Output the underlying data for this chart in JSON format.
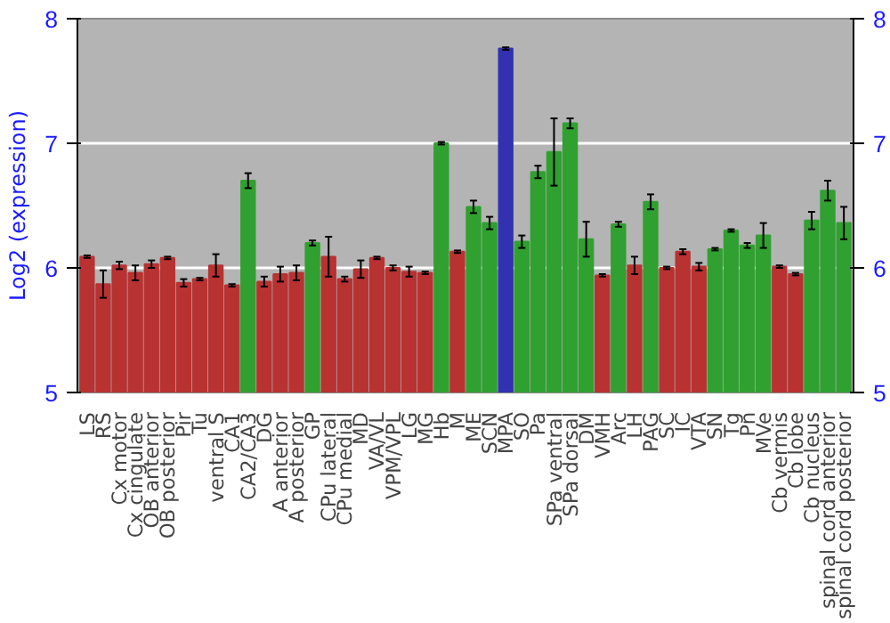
{
  "chart_data": {
    "type": "bar",
    "ylabel": "Log2 (expression)",
    "categories": [
      "LS",
      "RS",
      "Cx motor",
      "Cx cingulate",
      "OB anterior",
      "OB posterior",
      "Pir",
      "Tu",
      "ventral S",
      "CA1",
      "CA2/CA3",
      "DG",
      "A anterior",
      "A posterior",
      "GP",
      "CPu lateral",
      "CPu medial",
      "MD",
      "VA/VL",
      "VPM/VPL",
      "LG",
      "MG",
      "Hb",
      "M",
      "ME",
      "SCN",
      "MPA",
      "SO",
      "Pa",
      "SPa ventral",
      "SPa dorsal",
      "DM",
      "VMH",
      "Arc",
      "LH",
      "PAG",
      "SC",
      "IC",
      "VTA",
      "SN",
      "Tg",
      "Pn",
      "MVe",
      "Cb vermis",
      "Cb lobe",
      "Cb nucleus",
      "spinal cord anterior",
      "spinal cord posterior"
    ],
    "values": [
      6.09,
      5.87,
      6.02,
      5.96,
      6.03,
      6.08,
      5.88,
      5.91,
      6.02,
      5.86,
      6.7,
      5.89,
      5.95,
      5.96,
      6.2,
      6.09,
      5.91,
      5.99,
      6.08,
      6.0,
      5.97,
      5.96,
      7.0,
      6.13,
      6.49,
      6.36,
      7.76,
      6.21,
      6.77,
      6.93,
      7.16,
      6.23,
      5.94,
      6.35,
      6.02,
      6.53,
      6.0,
      6.13,
      6.01,
      6.15,
      6.3,
      6.18,
      6.26,
      6.01,
      5.95,
      6.38,
      6.62,
      6.36
    ],
    "errors": [
      0.01,
      0.11,
      0.03,
      0.06,
      0.03,
      0.01,
      0.03,
      0.01,
      0.09,
      0.01,
      0.06,
      0.04,
      0.06,
      0.06,
      0.02,
      0.16,
      0.02,
      0.07,
      0.01,
      0.02,
      0.04,
      0.01,
      0.01,
      0.01,
      0.05,
      0.05,
      0.01,
      0.05,
      0.05,
      0.27,
      0.04,
      0.14,
      0.01,
      0.02,
      0.07,
      0.06,
      0.01,
      0.02,
      0.03,
      0.01,
      0.01,
      0.02,
      0.1,
      0.01,
      0.01,
      0.07,
      0.08,
      0.13
    ],
    "colors": [
      "#b83232",
      "#b83232",
      "#b83232",
      "#b83232",
      "#b83232",
      "#b83232",
      "#b83232",
      "#b83232",
      "#b83232",
      "#b83232",
      "#30a030",
      "#b83232",
      "#b83232",
      "#b83232",
      "#30a030",
      "#b83232",
      "#b83232",
      "#b83232",
      "#b83232",
      "#b83232",
      "#b83232",
      "#b83232",
      "#30a030",
      "#b83232",
      "#30a030",
      "#30a030",
      "#3232b0",
      "#30a030",
      "#30a030",
      "#30a030",
      "#30a030",
      "#30a030",
      "#b83232",
      "#30a030",
      "#b83232",
      "#30a030",
      "#b83232",
      "#b83232",
      "#b83232",
      "#30a030",
      "#30a030",
      "#30a030",
      "#30a030",
      "#b83232",
      "#b83232",
      "#30a030",
      "#30a030",
      "#30a030"
    ],
    "ylim": [
      5,
      8
    ],
    "yticks": [
      5,
      6,
      7,
      8
    ],
    "y2lim": [
      5,
      8
    ],
    "y2ticks": [
      5,
      6,
      7,
      8
    ],
    "grid": "y"
  }
}
